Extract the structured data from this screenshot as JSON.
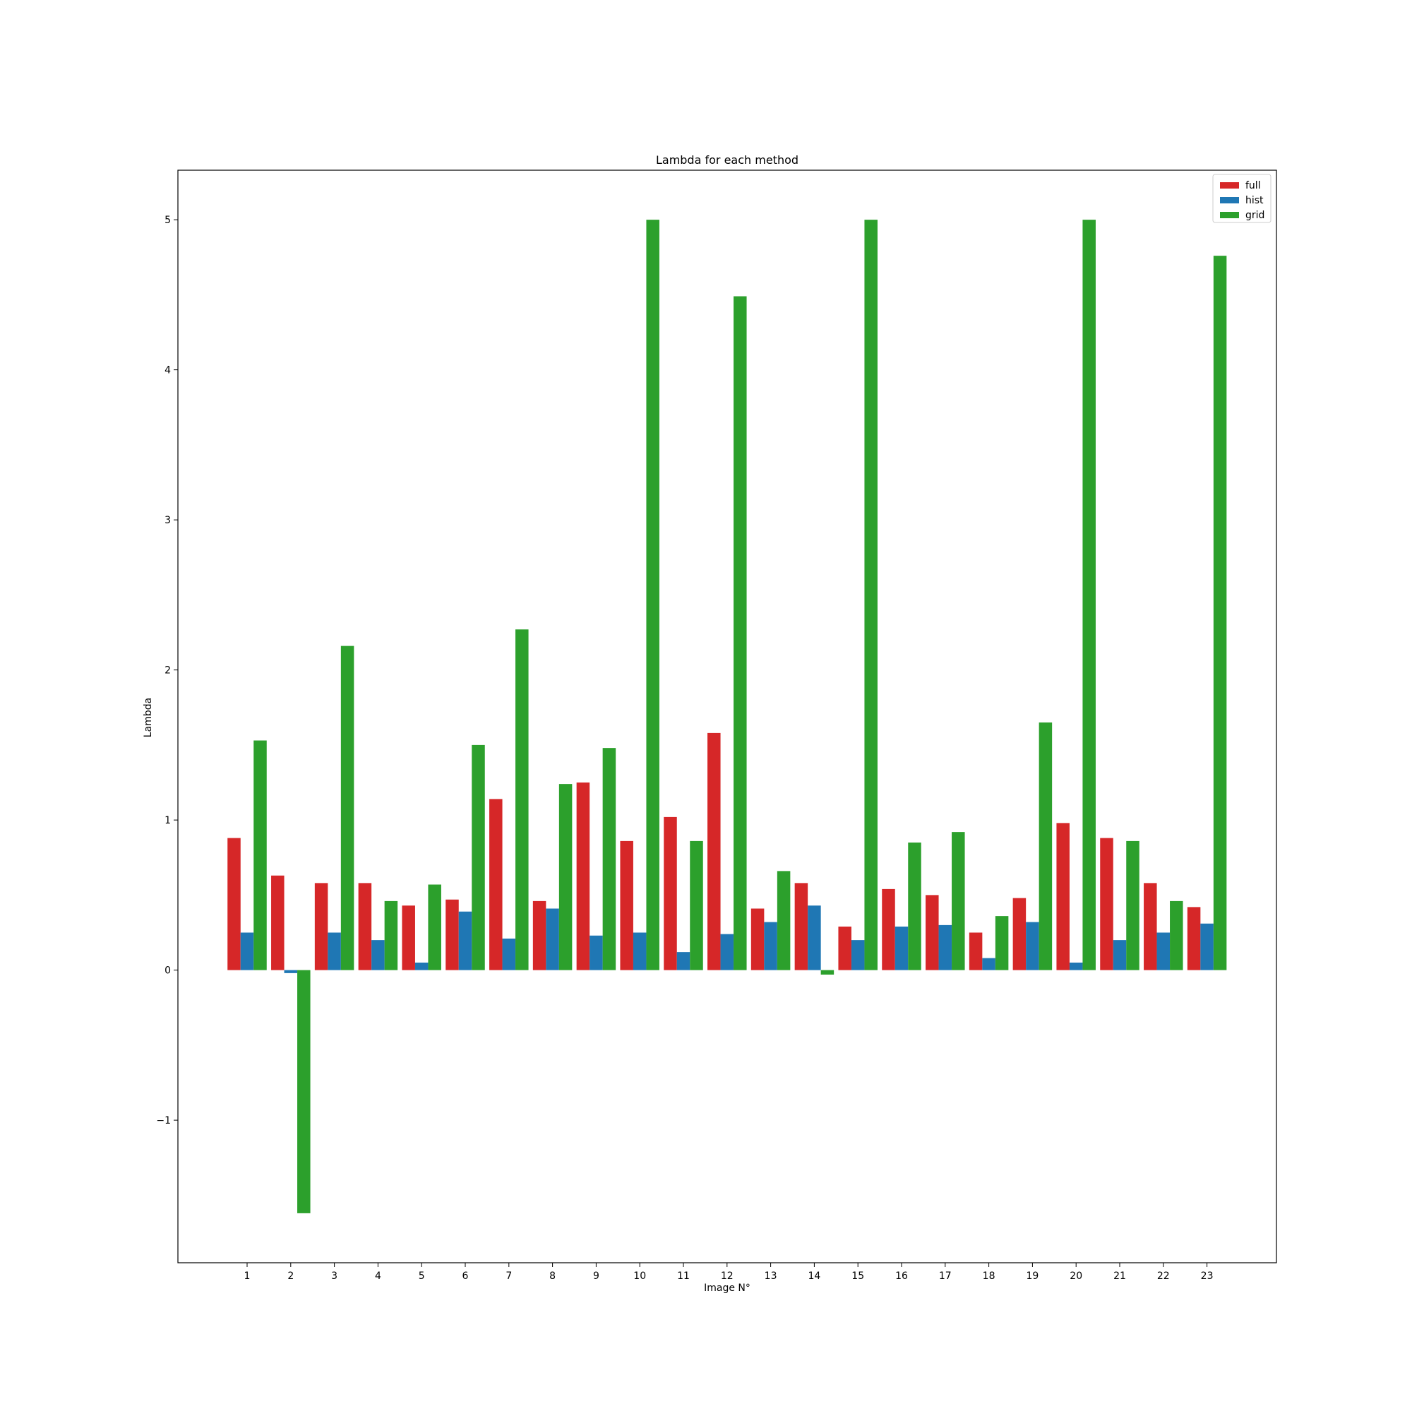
{
  "chart_data": {
    "type": "bar",
    "title": "Lambda for each method",
    "xlabel": "Image N°",
    "ylabel": "Lambda",
    "ylim": [
      -1.95,
      5.33
    ],
    "yticks": [
      -1,
      0,
      1,
      2,
      3,
      4,
      5
    ],
    "ytick_labels": [
      "−1",
      "0",
      "1",
      "2",
      "3",
      "4",
      "5"
    ],
    "grid": false,
    "legend_position": "top-right",
    "categories": [
      "1",
      "2",
      "3",
      "4",
      "5",
      "6",
      "7",
      "8",
      "9",
      "10",
      "11",
      "12",
      "13",
      "14",
      "15",
      "16",
      "17",
      "18",
      "19",
      "20",
      "21",
      "22",
      "23"
    ],
    "series": [
      {
        "name": "full",
        "color": "#d62728",
        "values": [
          0.88,
          0.63,
          0.58,
          0.58,
          0.43,
          0.47,
          1.14,
          0.46,
          1.25,
          0.86,
          1.02,
          1.58,
          0.41,
          0.58,
          0.29,
          0.54,
          0.5,
          0.25,
          0.48,
          0.98,
          0.88,
          0.58,
          0.42
        ]
      },
      {
        "name": "hist",
        "color": "#1f77b4",
        "values": [
          0.25,
          -0.02,
          0.25,
          0.2,
          0.05,
          0.39,
          0.21,
          0.41,
          0.23,
          0.25,
          0.12,
          0.24,
          0.32,
          0.43,
          0.2,
          0.29,
          0.3,
          0.08,
          0.32,
          0.05,
          0.2,
          0.25,
          0.31
        ]
      },
      {
        "name": "grid",
        "color": "#2ca02c",
        "values": [
          1.53,
          -1.62,
          2.16,
          0.46,
          0.57,
          1.5,
          2.27,
          1.24,
          1.48,
          5.0,
          0.86,
          4.49,
          0.66,
          -0.03,
          5.0,
          0.85,
          0.92,
          0.36,
          1.65,
          5.0,
          0.86,
          0.46,
          4.76
        ]
      }
    ]
  }
}
